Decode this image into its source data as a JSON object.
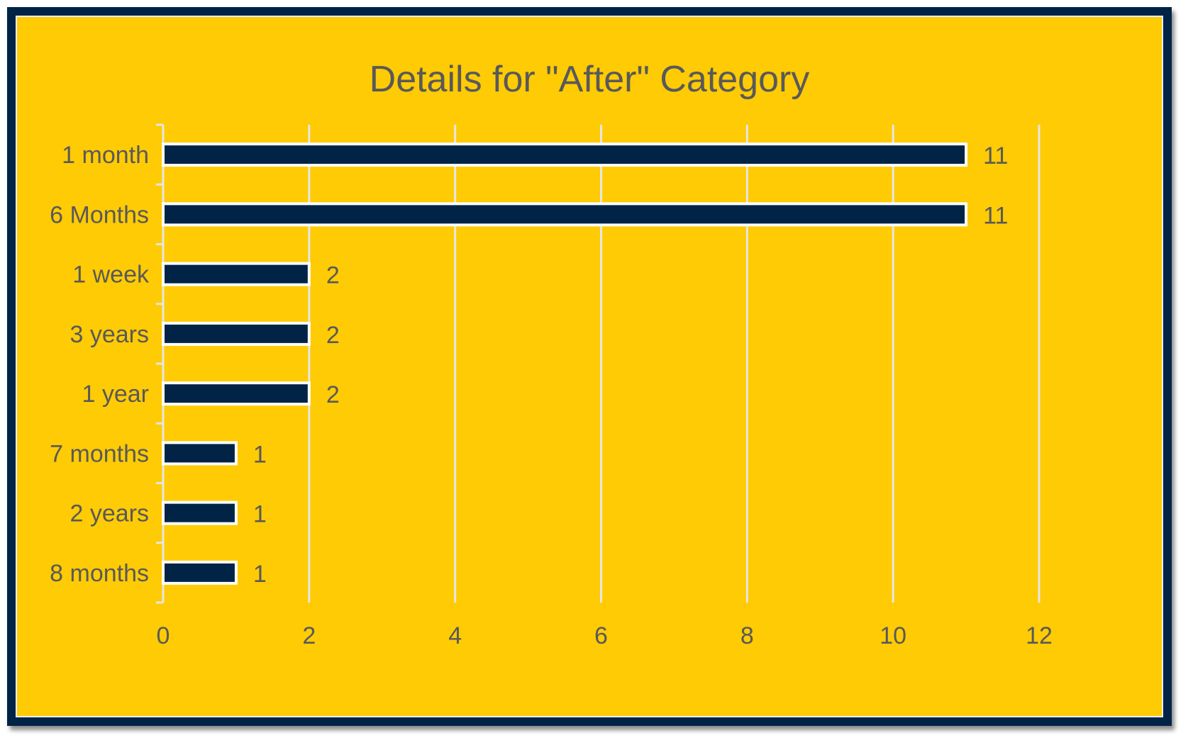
{
  "chart_data": {
    "type": "bar",
    "orientation": "horizontal",
    "title": "Details for \"After\" Category",
    "categories": [
      "1 month",
      "6 Months",
      "1 week",
      "3 years",
      "1 year",
      "7 months",
      "2 years",
      "8 months"
    ],
    "values": [
      11,
      11,
      2,
      2,
      2,
      1,
      1,
      1
    ],
    "xlabel": "",
    "ylabel": "",
    "xlim": [
      0,
      12
    ],
    "x_ticks": [
      0,
      2,
      4,
      6,
      8,
      10,
      12
    ],
    "data_labels": true,
    "grid": "vertical",
    "legend": "none"
  },
  "colors": {
    "background": "#fecb05",
    "frame": "#002346",
    "bar_fill": "#002346",
    "bar_outline": "#ffffff",
    "gridline": "#e6e6e6",
    "text": "#595959"
  }
}
